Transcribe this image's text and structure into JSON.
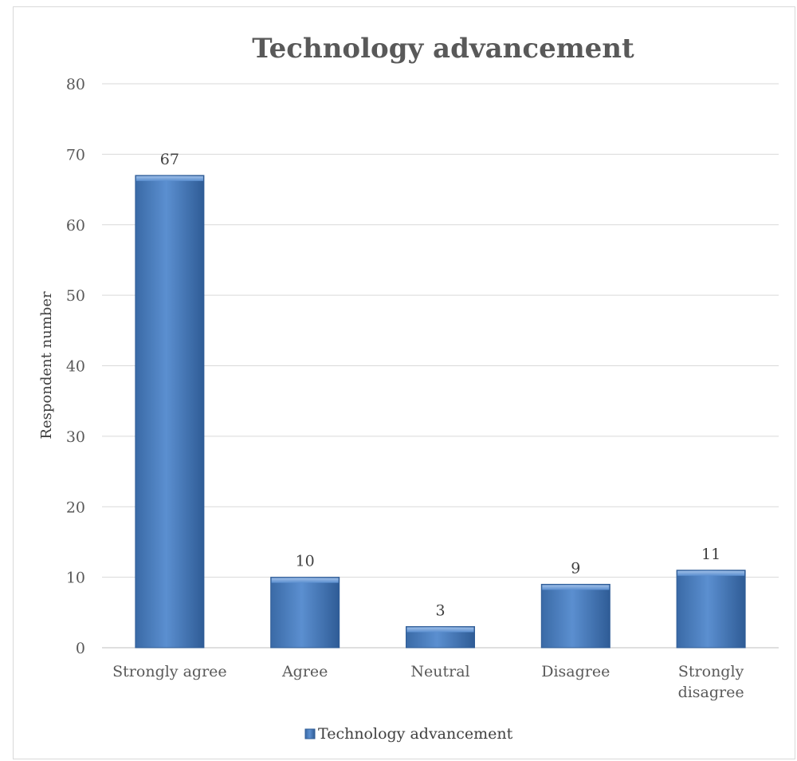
{
  "chart_data": {
    "type": "bar",
    "title": "Technology advancement",
    "ylabel": "Respondent number",
    "xlabel": "",
    "categories": [
      "Strongly agree",
      "Agree",
      "Neutral",
      "Disagree",
      "Strongly disagree"
    ],
    "series": [
      {
        "name": "Technology advancement",
        "values": [
          67,
          10,
          3,
          9,
          11
        ]
      }
    ],
    "ylim": [
      0,
      80
    ],
    "yticks": [
      "0",
      "10",
      "20",
      "30",
      "40",
      "50",
      "60",
      "70",
      "80"
    ],
    "grid": true,
    "legend": "bottom",
    "bar_color": "#4a7ebb",
    "data_labels": true
  }
}
